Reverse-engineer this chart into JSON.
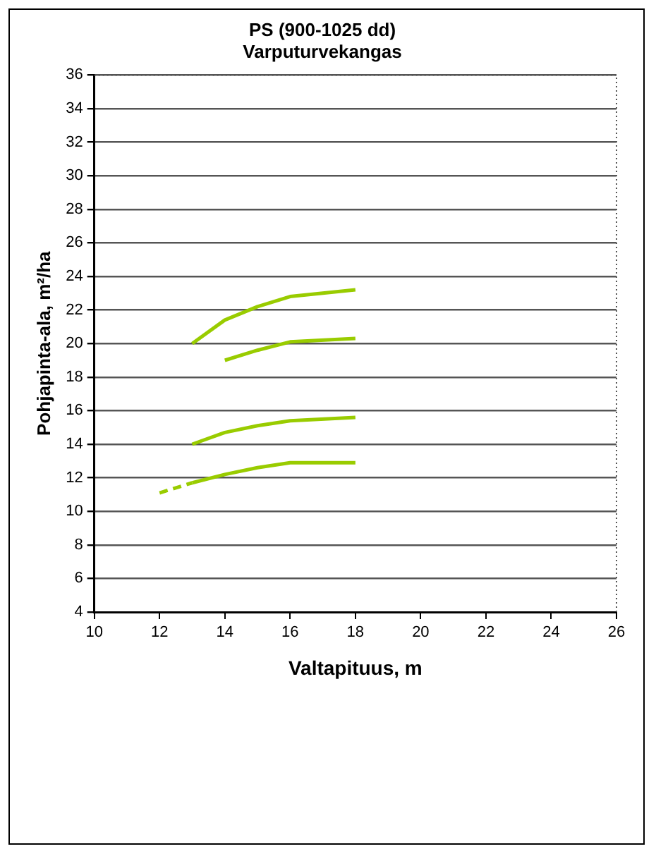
{
  "chart_data": {
    "type": "line",
    "title": [
      "PS (900-1025 dd)",
      "Varputurvekangas"
    ],
    "xlabel": "Valtapituus, m",
    "ylabel": "Pohjapinta-ala, m²/ha",
    "xlim": [
      10,
      26
    ],
    "xticks": [
      10,
      12,
      14,
      16,
      18,
      20,
      22,
      24,
      26
    ],
    "ylim": [
      4,
      36
    ],
    "yticks": [
      4,
      6,
      8,
      10,
      12,
      14,
      16,
      18,
      20,
      22,
      24,
      26,
      28,
      30,
      32,
      34,
      36
    ],
    "grid": "y",
    "legend": false,
    "marker": "none",
    "series": [
      {
        "color": "#99cc00",
        "x": [
          13,
          14,
          15,
          16,
          18
        ],
        "values": [
          20,
          21.4,
          22.2,
          22.8,
          23.2
        ]
      },
      {
        "color": "#99cc00",
        "x": [
          14,
          15,
          16,
          18
        ],
        "values": [
          19,
          19.6,
          20.1,
          20.3
        ]
      },
      {
        "color": "#99cc00",
        "x": [
          13,
          14,
          15,
          16,
          18
        ],
        "values": [
          14,
          14.7,
          15.1,
          15.4,
          15.6
        ]
      },
      {
        "color": "#99cc00",
        "x": [
          13,
          14,
          15,
          16,
          18
        ],
        "values": [
          11.7,
          12.2,
          12.6,
          12.9,
          12.9
        ]
      },
      {
        "color": "#99cc00",
        "x": [
          12,
          13
        ],
        "values": [
          11.1,
          11.7
        ],
        "line_style": "dashed"
      }
    ]
  }
}
